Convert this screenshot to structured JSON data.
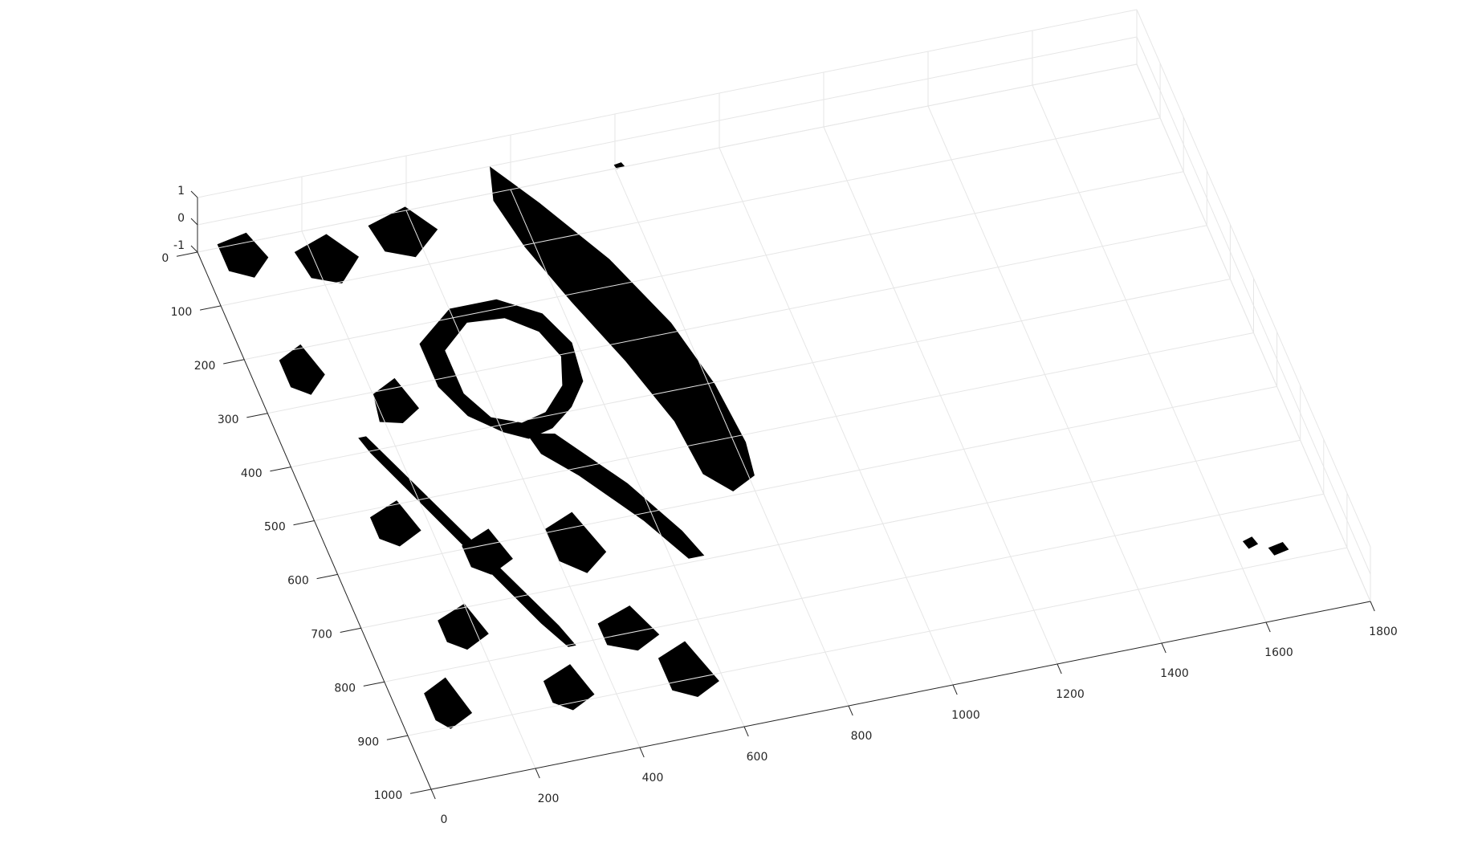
{
  "chart_data": {
    "type": "surface",
    "title": "",
    "xlabel": "",
    "ylabel": "",
    "zlabel": "",
    "xlim": [
      0,
      1800
    ],
    "ylim": [
      0,
      1000
    ],
    "zlim": [
      -1,
      1
    ],
    "x_ticks": [
      0,
      200,
      400,
      600,
      800,
      1000,
      1200,
      1400,
      1600,
      1800
    ],
    "y_ticks": [
      0,
      100,
      200,
      300,
      400,
      500,
      600,
      700,
      800,
      900,
      1000
    ],
    "z_ticks": [
      -1,
      0,
      1
    ],
    "x_tick_labels": [
      "0",
      "200",
      "400",
      "600",
      "800",
      "1000",
      "1200",
      "1400",
      "1600",
      "1800"
    ],
    "y_tick_labels": [
      "0",
      "100",
      "200",
      "300",
      "400",
      "500",
      "600",
      "700",
      "800",
      "900",
      "1000"
    ],
    "z_tick_labels": [
      "-1",
      "0",
      "1"
    ],
    "grid": true,
    "colors": {
      "foreground": "#000000",
      "background": "#ffffff",
      "grid": "#e6e6e6",
      "axis": "#262626"
    }
  }
}
